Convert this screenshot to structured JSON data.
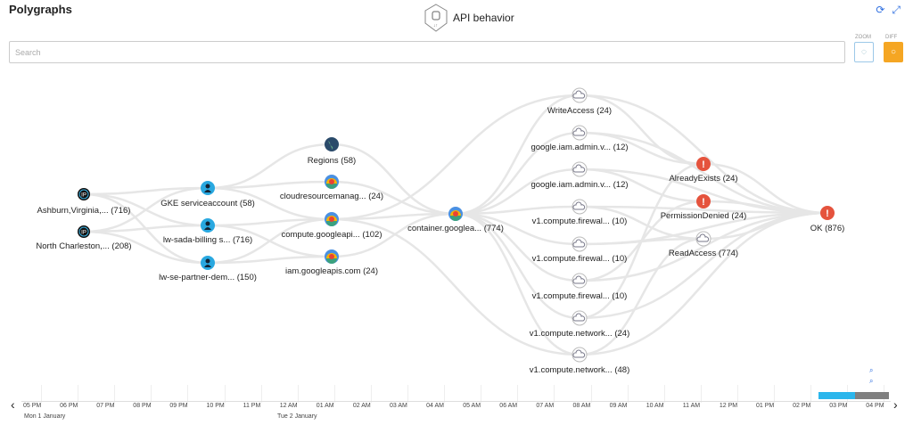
{
  "header": {
    "title": "Polygraphs",
    "view_title": "API behavior",
    "view_icon": "api-shield-icon",
    "refresh_icon": "refresh-icon",
    "expand_icon": "expand-icon"
  },
  "search": {
    "placeholder": "Search",
    "value": ""
  },
  "controls": {
    "zoom_label": "ZOOM",
    "diff_label": "DIFF",
    "diff_color": "#f5a623"
  },
  "nodes": [
    {
      "label": "Ashburn,Virginia,... (716)",
      "icon": "ip-pin-icon"
    },
    {
      "label": "North Charleston,... (208)",
      "icon": "ip-pin-icon"
    },
    {
      "label": "GKE serviceaccount (58)",
      "icon": "user-icon"
    },
    {
      "label": "lw-sada-billing s... (716)",
      "icon": "user-icon"
    },
    {
      "label": "lw-se-partner-dem... (150)",
      "icon": "user-icon"
    },
    {
      "label": "Regions (58)",
      "icon": "globe-icon"
    },
    {
      "label": "cloudresourcemanag... (24)",
      "icon": "google-cloud-icon"
    },
    {
      "label": "compute.googleapi... (102)",
      "icon": "google-cloud-icon"
    },
    {
      "label": "iam.googleapis.com (24)",
      "icon": "google-cloud-icon"
    },
    {
      "label": "container.googlea... (774)",
      "icon": "google-cloud-icon"
    },
    {
      "label": "WriteAccess (24)",
      "icon": "api-cloud-icon"
    },
    {
      "label": "google.iam.admin.v... (12)",
      "icon": "api-cloud-icon"
    },
    {
      "label": "google.iam.admin.v... (12)",
      "icon": "api-cloud-icon"
    },
    {
      "label": "v1.compute.firewal... (10)",
      "icon": "api-cloud-icon"
    },
    {
      "label": "v1.compute.firewal... (10)",
      "icon": "api-cloud-icon"
    },
    {
      "label": "v1.compute.firewal... (10)",
      "icon": "api-cloud-icon"
    },
    {
      "label": "v1.compute.network... (24)",
      "icon": "api-cloud-icon"
    },
    {
      "label": "v1.compute.network... (48)",
      "icon": "api-cloud-icon"
    },
    {
      "label": "AlreadyExists (24)",
      "icon": "error-icon"
    },
    {
      "label": "PermissionDenied (24)",
      "icon": "error-icon"
    },
    {
      "label": "ReadAccess (774)",
      "icon": "api-cloud-icon"
    },
    {
      "label": "OK (876)",
      "icon": "error-icon"
    }
  ],
  "timeline": {
    "ticks": [
      "05 PM",
      "06 PM",
      "07 PM",
      "08 PM",
      "09 PM",
      "10 PM",
      "11 PM",
      "12 AM",
      "01 AM",
      "02 AM",
      "03 AM",
      "04 AM",
      "05 AM",
      "06 AM",
      "07 AM",
      "08 AM",
      "09 AM",
      "10 AM",
      "11 AM",
      "12 PM",
      "01 PM",
      "02 PM",
      "03 PM",
      "04 PM"
    ],
    "dates": [
      "Mon 1 January",
      "Tue 2 January"
    ],
    "selected_color": "#2bb6ec",
    "diff_color": "#808080"
  }
}
